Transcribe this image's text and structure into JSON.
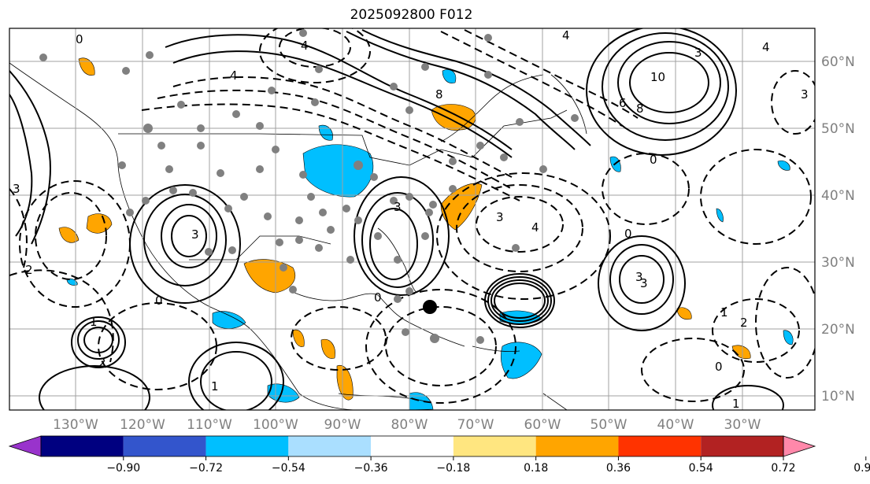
{
  "title": "2025092800 F012",
  "longitude_labels": [
    "130°W",
    "120°W",
    "110°W",
    "100°W",
    "90°W",
    "80°W",
    "70°W",
    "60°W",
    "50°W",
    "40°W",
    "30°W"
  ],
  "latitude_labels": [
    "60°N",
    "50°N",
    "40°N",
    "30°N",
    "20°N",
    "10°N"
  ],
  "colorbar": {
    "colors": [
      "#9933cc",
      "#000080",
      "#3355cc",
      "#00bfff",
      "#aadfff",
      "#ffffff",
      "#ffe680",
      "#ffa500",
      "#ff3300",
      "#b22222",
      "#ff88aa"
    ],
    "tick_labels": [
      "−0.90",
      "−0.72",
      "−0.54",
      "−0.36",
      "−0.18",
      "0.18",
      "0.36",
      "0.54",
      "0.72",
      "0.90"
    ]
  },
  "contour_labels": [
    "0",
    "4",
    "4",
    "4",
    "8",
    "10",
    "6",
    "8",
    "3",
    "4",
    "3",
    "0",
    "3",
    "3",
    "4",
    "0",
    "3",
    "3",
    "0",
    "2",
    "1",
    "2",
    "1",
    "1",
    "0",
    "0",
    "1",
    "2",
    "3",
    "3"
  ],
  "colors": {
    "positive": "#ffa500",
    "negative": "#00bfff",
    "stations": "#808080",
    "grid": "#a0a0a0"
  }
}
